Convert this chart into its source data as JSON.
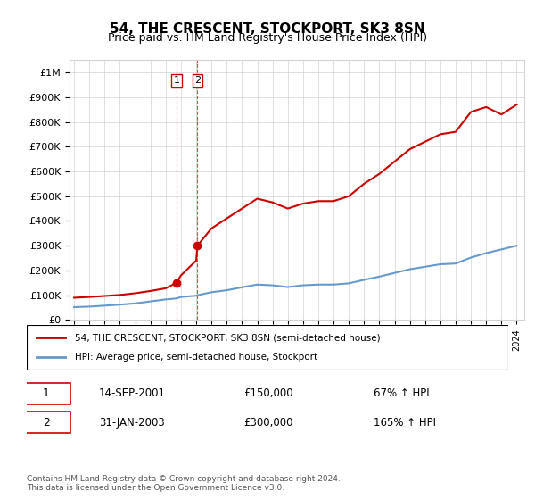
{
  "title": "54, THE CRESCENT, STOCKPORT, SK3 8SN",
  "subtitle": "Price paid vs. HM Land Registry's House Price Index (HPI)",
  "title_fontsize": 12,
  "subtitle_fontsize": 10,
  "ylabel_ticks": [
    "£0",
    "£100K",
    "£200K",
    "£300K",
    "£400K",
    "£500K",
    "£600K",
    "£700K",
    "£800K",
    "£900K",
    "£1M"
  ],
  "ytick_values": [
    0,
    100000,
    200000,
    300000,
    400000,
    500000,
    600000,
    700000,
    800000,
    900000,
    1000000
  ],
  "ylim": [
    0,
    1050000
  ],
  "xlim_start": 1995,
  "xlim_end": 2024.5,
  "sale1_date": 2001.71,
  "sale1_price": 150000,
  "sale1_label": "1",
  "sale2_date": 2003.08,
  "sale2_price": 300000,
  "sale2_label": "2",
  "property_color": "#cc0000",
  "hpi_color": "#6699cc",
  "vline_color": "#cc0000",
  "property_label": "54, THE CRESCENT, STOCKPORT, SK3 8SN (semi-detached house)",
  "hpi_label": "HPI: Average price, semi-detached house, Stockport",
  "transaction_rows": [
    {
      "label": "1",
      "date": "14-SEP-2001",
      "price": "£150,000",
      "hpi": "67% ↑ HPI"
    },
    {
      "label": "2",
      "date": "31-JAN-2003",
      "price": "£300,000",
      "hpi": "165% ↑ HPI"
    }
  ],
  "footer": "Contains HM Land Registry data © Crown copyright and database right 2024.\nThis data is licensed under the Open Government Licence v3.0.",
  "hpi_x": [
    1995,
    1996,
    1997,
    1998,
    1999,
    2000,
    2001,
    2001.71,
    2002,
    2003,
    2003.08,
    2004,
    2005,
    2006,
    2007,
    2008,
    2009,
    2010,
    2011,
    2012,
    2013,
    2014,
    2015,
    2016,
    2017,
    2018,
    2019,
    2020,
    2021,
    2022,
    2023,
    2024
  ],
  "hpi_y": [
    52000,
    54000,
    58000,
    62000,
    67000,
    75000,
    83000,
    87000,
    93000,
    98000,
    100000,
    112000,
    120000,
    132000,
    143000,
    140000,
    133000,
    140000,
    143000,
    143000,
    148000,
    162000,
    175000,
    190000,
    205000,
    215000,
    225000,
    228000,
    252000,
    270000,
    285000,
    300000
  ],
  "property_x": [
    1995,
    1996,
    1997,
    1998,
    1999,
    2000,
    2001,
    2001.71,
    2002,
    2003,
    2003.08,
    2004,
    2005,
    2006,
    2007,
    2008,
    2009,
    2010,
    2011,
    2012,
    2013,
    2014,
    2015,
    2016,
    2017,
    2018,
    2019,
    2020,
    2021,
    2022,
    2023,
    2024
  ],
  "property_y": [
    90000,
    93000,
    97000,
    101000,
    108000,
    117000,
    128000,
    150000,
    180000,
    240000,
    300000,
    370000,
    410000,
    450000,
    490000,
    475000,
    450000,
    470000,
    480000,
    480000,
    500000,
    550000,
    590000,
    640000,
    690000,
    720000,
    750000,
    760000,
    840000,
    860000,
    830000,
    870000
  ]
}
